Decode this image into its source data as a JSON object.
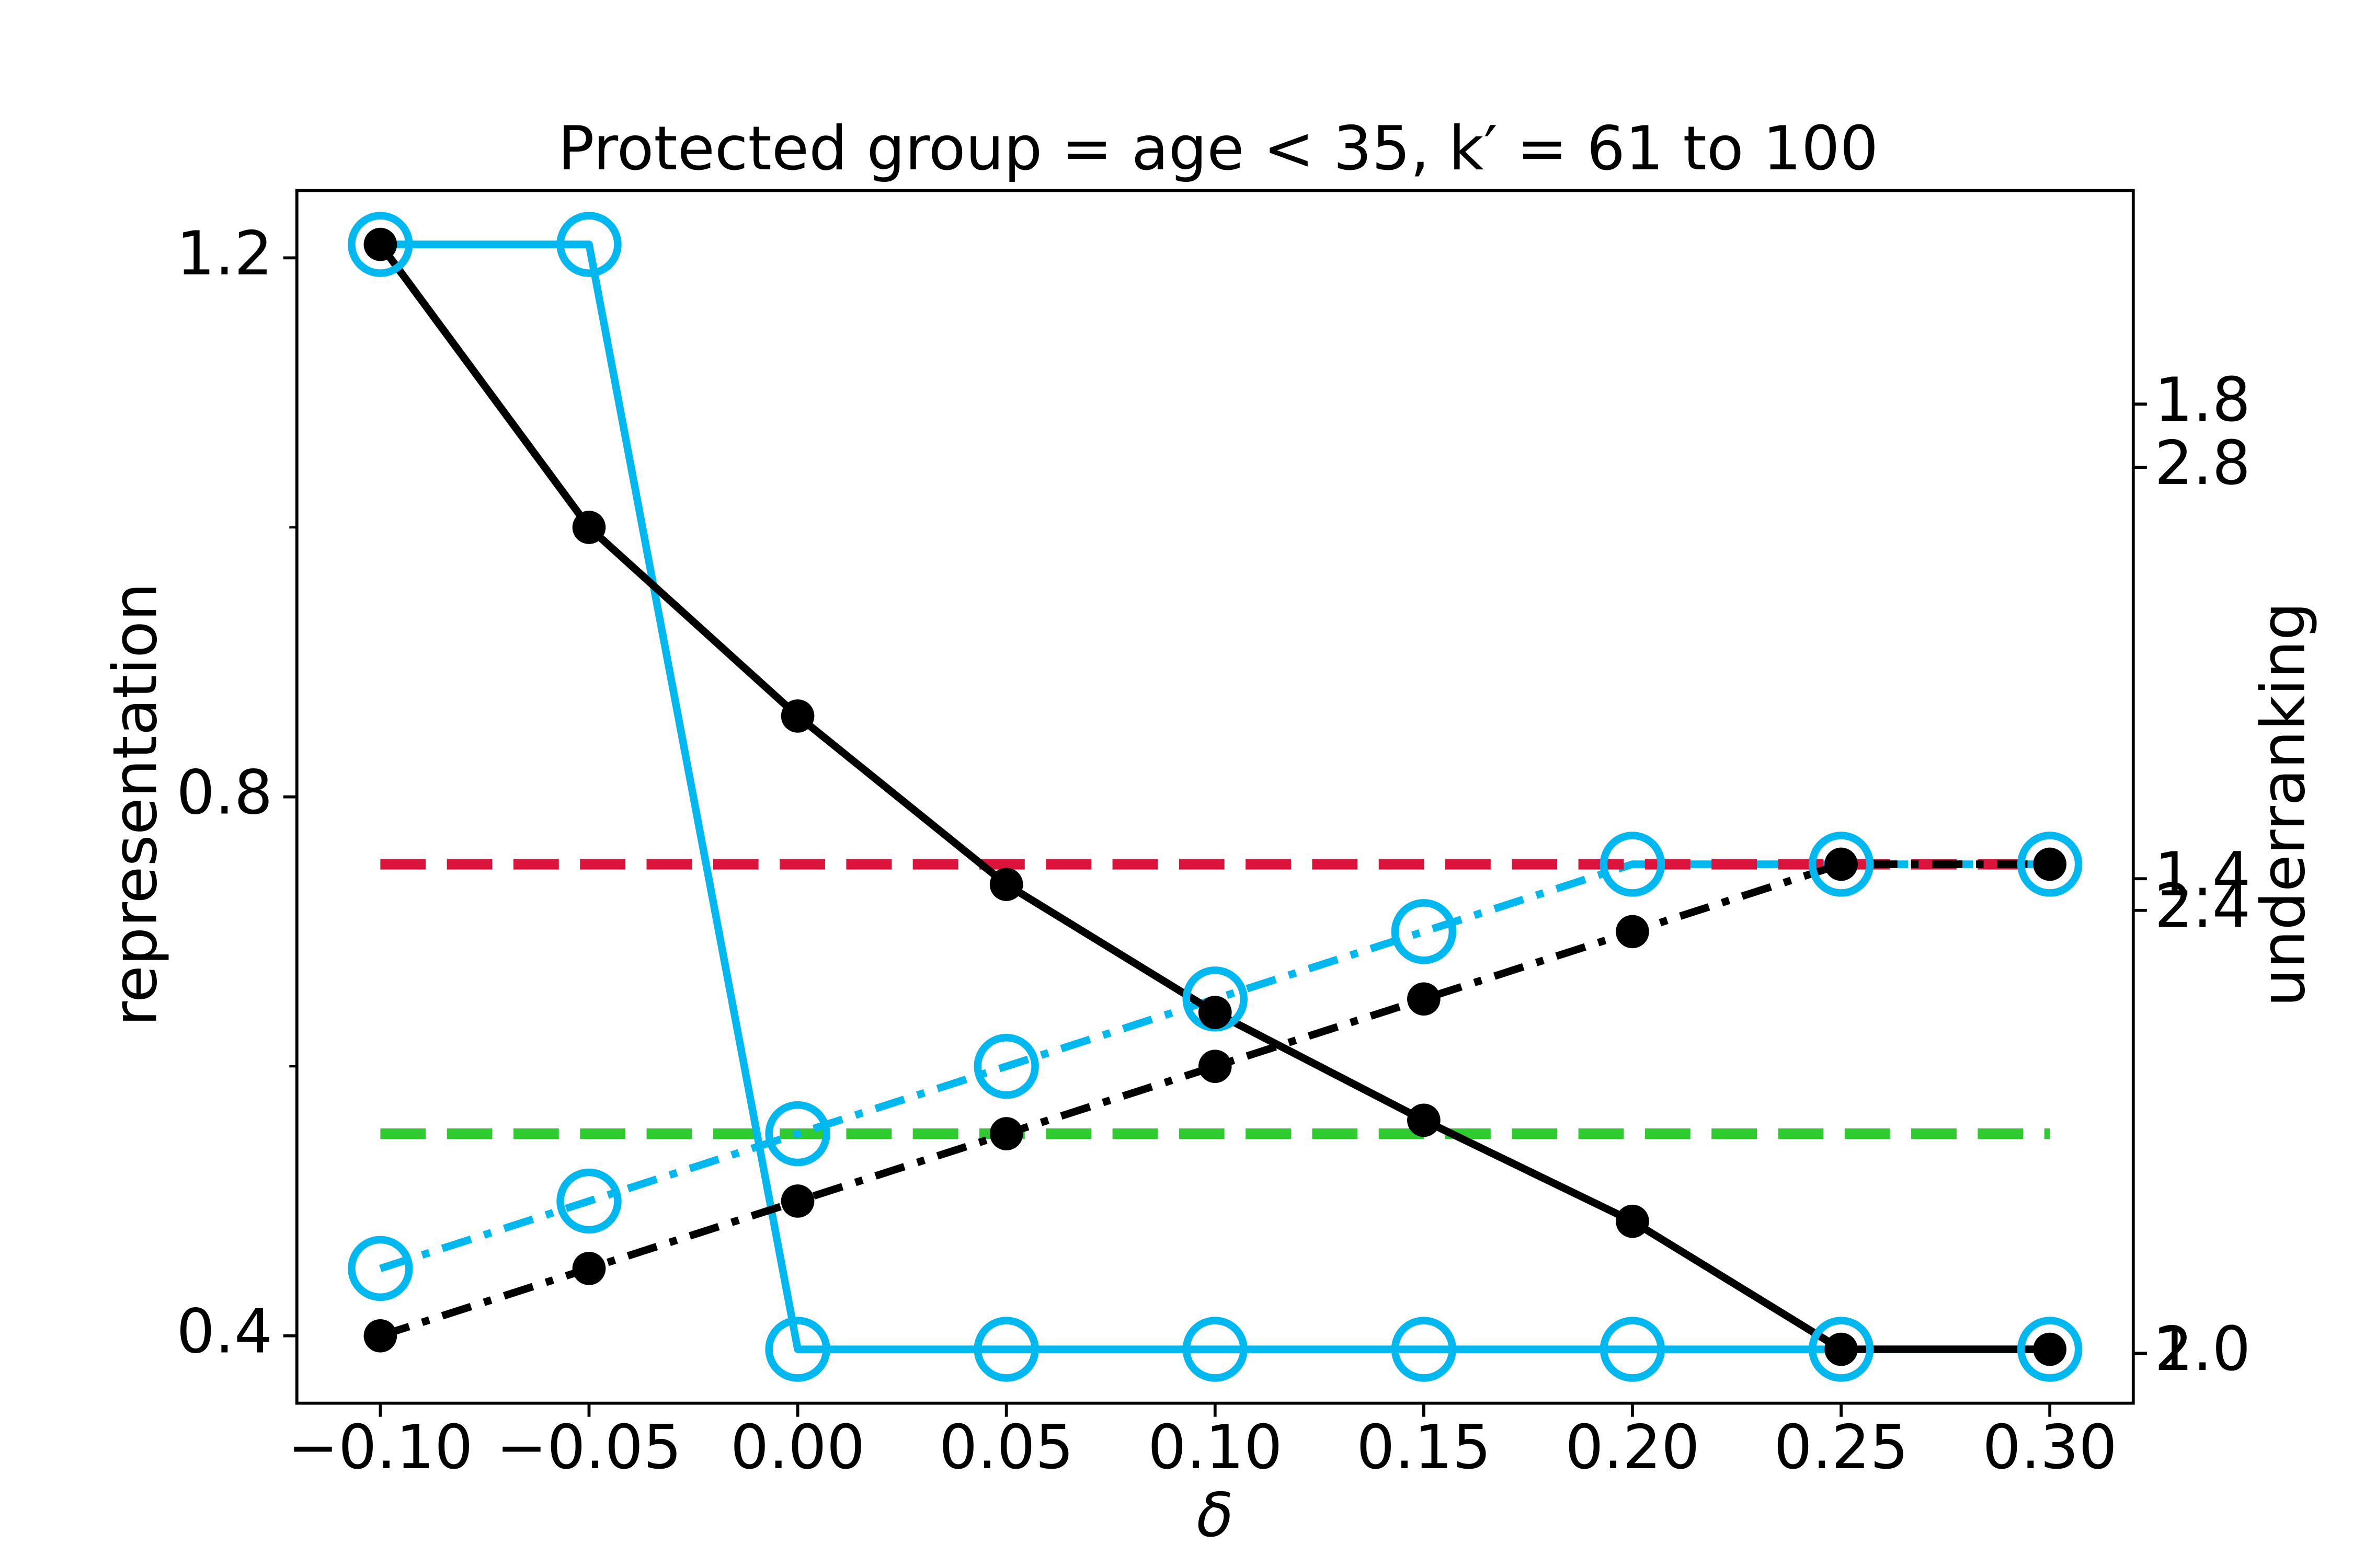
{
  "chart_data": {
    "type": "line",
    "title": "Protected group = age < 35, k′ = 61 to 100",
    "xlabel": "δ",
    "ylabel": "representation",
    "y2label": "underranking",
    "x": [
      -0.1,
      -0.05,
      0,
      0.05,
      0.1,
      0.15,
      0.2,
      0.25,
      0.3
    ],
    "xlim": [
      -0.12,
      0.32
    ],
    "xticks": [
      {
        "value": -0.1,
        "label": "−0.10"
      },
      {
        "value": -0.05,
        "label": "−0.05"
      },
      {
        "value": 0,
        "label": "0.00"
      },
      0.05,
      {
        "value": 0.1,
        "label": "0.10"
      },
      0.15,
      {
        "value": 0.2,
        "label": "0.20"
      },
      0.25,
      {
        "value": 0.3,
        "label": "0.30"
      }
    ],
    "ylim": [
      0.35,
      1.25
    ],
    "yticks": [
      0.4,
      0.8,
      1.2
    ],
    "yminorticks": [
      0.6,
      1.0
    ],
    "y2lim": [
      0.958,
      1.98
    ],
    "y2ticks": [
      {
        "value": 1,
        "label": "1.0"
      },
      1.4,
      1.8
    ],
    "y3lim": [
      1.955,
      3.05
    ],
    "y3ticks": [
      {
        "value": 2,
        "label": "2.0"
      },
      2.4,
      2.8
    ],
    "series": [
      {
        "color": "#2ecc2e",
        "style": "dashed",
        "marker": "none",
        "values": [
          0.55,
          0.55,
          0.55,
          0.55,
          0.55,
          0.55,
          0.55,
          0.55,
          0.55
        ]
      },
      {
        "color": "#00b8f0",
        "style": "solid",
        "marker": "hollow",
        "values": [
          1.21,
          1.21,
          0.39,
          0.39,
          0.39,
          0.39,
          0.39,
          0.39,
          0.39
        ]
      },
      {
        "color": "#00b8f0",
        "style": "dashdot",
        "marker": "hollow",
        "values": [
          0.45,
          0.5,
          0.55,
          0.6,
          0.65,
          0.7,
          0.75,
          0.75,
          0.75
        ]
      },
      {
        "color": "#dc143c",
        "style": "dashed",
        "marker": "none",
        "values": [
          0.75,
          0.75,
          0.75,
          0.75,
          0.75,
          0.75,
          0.75,
          0.75,
          0.75
        ]
      },
      {
        "color": "#000000",
        "style": "solid",
        "marker": "filled",
        "values": [
          1.21,
          1.0,
          0.86,
          0.735,
          0.64,
          0.56,
          0.485,
          0.39,
          0.39
        ]
      },
      {
        "color": "#000000",
        "style": "dashdot",
        "marker": "filled",
        "values": [
          0.4,
          0.45,
          0.5,
          0.55,
          0.6,
          0.65,
          0.7,
          0.75,
          0.75
        ]
      }
    ]
  }
}
